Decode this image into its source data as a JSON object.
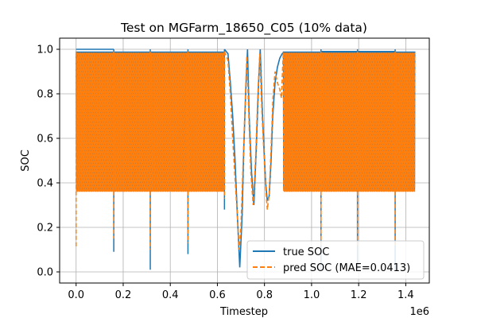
{
  "chart_data": {
    "type": "line",
    "title": "Test on MGFarm_18650_C05 (10% data)",
    "xlabel": "Timestep",
    "ylabel": "SOC",
    "x_scale_label": "1e6",
    "xlim": [
      -0.07,
      1.5
    ],
    "ylim": [
      -0.05,
      1.05
    ],
    "x_ticks": [
      0.0,
      0.2,
      0.4,
      0.6,
      0.8,
      1.0,
      1.2,
      1.4
    ],
    "x_tick_labels": [
      "0.0",
      "0.2",
      "0.4",
      "0.6",
      "0.8",
      "1.0",
      "1.2",
      "1.4"
    ],
    "y_ticks": [
      0.0,
      0.2,
      0.4,
      0.6,
      0.8,
      1.0
    ],
    "y_tick_labels": [
      "0.0",
      "0.2",
      "0.4",
      "0.6",
      "0.8",
      "1.0"
    ],
    "grid": true,
    "legend_position": "lower-right",
    "colors": {
      "true": "#1f77b4",
      "pred": "#ff7f0e"
    },
    "series": [
      {
        "name": "true SOC",
        "style": "solid",
        "cycling_band": {
          "low": 0.37,
          "high": 0.99
        },
        "segments": [
          [
            0.0,
            0.16
          ],
          [
            0.16,
            0.315
          ],
          [
            0.315,
            0.475
          ],
          [
            0.475,
            0.63
          ],
          [
            0.88,
            1.04
          ],
          [
            1.04,
            1.195
          ],
          [
            1.195,
            1.355
          ],
          [
            1.355,
            1.44
          ]
        ],
        "spikes": [
          {
            "x": 0.16,
            "low": 0.09,
            "high": 1.0
          },
          {
            "x": 0.315,
            "low": 0.01,
            "high": 1.0
          },
          {
            "x": 0.475,
            "low": 0.08,
            "high": 1.0
          },
          {
            "x": 0.63,
            "low": 0.28,
            "high": 1.0
          },
          {
            "x": 1.04,
            "low": 0.01,
            "high": 1.0
          },
          {
            "x": 1.195,
            "low": 0.01,
            "high": 1.0
          },
          {
            "x": 1.355,
            "low": 0.01,
            "high": 1.0
          }
        ],
        "top_plateaus": [
          [
            0.0,
            0.16,
            1.0
          ],
          [
            0.88,
            1.04,
            0.985
          ],
          [
            1.04,
            1.195,
            0.99
          ],
          [
            1.195,
            1.355,
            0.99
          ]
        ],
        "mid_profile": [
          [
            0.63,
            1.0
          ],
          [
            0.645,
            0.98
          ],
          [
            0.655,
            0.85
          ],
          [
            0.665,
            0.7
          ],
          [
            0.675,
            0.5
          ],
          [
            0.685,
            0.25
          ],
          [
            0.695,
            0.02
          ],
          [
            0.705,
            0.25
          ],
          [
            0.712,
            0.55
          ],
          [
            0.72,
            0.8
          ],
          [
            0.728,
            1.0
          ],
          [
            0.735,
            0.7
          ],
          [
            0.745,
            0.45
          ],
          [
            0.755,
            0.3
          ],
          [
            0.765,
            0.55
          ],
          [
            0.775,
            0.85
          ],
          [
            0.782,
            1.0
          ],
          [
            0.79,
            0.75
          ],
          [
            0.798,
            0.55
          ],
          [
            0.805,
            0.4
          ],
          [
            0.812,
            0.32
          ],
          [
            0.82,
            0.34
          ],
          [
            0.828,
            0.5
          ],
          [
            0.835,
            0.7
          ],
          [
            0.845,
            0.85
          ],
          [
            0.855,
            0.92
          ],
          [
            0.865,
            0.96
          ],
          [
            0.875,
            0.98
          ],
          [
            0.88,
            0.985
          ]
        ]
      },
      {
        "name": "pred SOC (MAE=0.0413)",
        "style": "dashed",
        "cycling_band": {
          "low": 0.36,
          "high": 0.985
        },
        "segments": [
          [
            0.0,
            0.16
          ],
          [
            0.16,
            0.315
          ],
          [
            0.315,
            0.475
          ],
          [
            0.475,
            0.63
          ],
          [
            0.88,
            1.04
          ],
          [
            1.04,
            1.195
          ],
          [
            1.195,
            1.355
          ],
          [
            1.355,
            1.44
          ]
        ],
        "spikes": [
          {
            "x": 0.0,
            "low": 0.11,
            "high": 0.99
          },
          {
            "x": 0.16,
            "low": 0.15,
            "high": 0.99
          },
          {
            "x": 0.315,
            "low": 0.1,
            "high": 0.99
          },
          {
            "x": 0.475,
            "low": 0.13,
            "high": 0.99
          },
          {
            "x": 0.63,
            "low": 0.33,
            "high": 0.99
          },
          {
            "x": 1.04,
            "low": 0.12,
            "high": 0.99
          },
          {
            "x": 1.195,
            "low": 0.12,
            "high": 0.99
          },
          {
            "x": 1.355,
            "low": 0.12,
            "high": 0.99
          }
        ],
        "mid_profile": [
          [
            0.63,
            0.99
          ],
          [
            0.645,
            0.95
          ],
          [
            0.655,
            0.8
          ],
          [
            0.665,
            0.6
          ],
          [
            0.675,
            0.42
          ],
          [
            0.685,
            0.25
          ],
          [
            0.693,
            0.1
          ],
          [
            0.7,
            0.2
          ],
          [
            0.708,
            0.45
          ],
          [
            0.716,
            0.7
          ],
          [
            0.725,
            0.97
          ],
          [
            0.733,
            0.72
          ],
          [
            0.742,
            0.45
          ],
          [
            0.752,
            0.3
          ],
          [
            0.762,
            0.5
          ],
          [
            0.772,
            0.8
          ],
          [
            0.78,
            0.98
          ],
          [
            0.789,
            0.72
          ],
          [
            0.797,
            0.55
          ],
          [
            0.805,
            0.38
          ],
          [
            0.812,
            0.28
          ],
          [
            0.82,
            0.35
          ],
          [
            0.828,
            0.55
          ],
          [
            0.836,
            0.78
          ],
          [
            0.845,
            0.9
          ],
          [
            0.855,
            0.85
          ],
          [
            0.865,
            0.82
          ],
          [
            0.872,
            0.78
          ],
          [
            0.88,
            0.99
          ]
        ]
      }
    ]
  }
}
